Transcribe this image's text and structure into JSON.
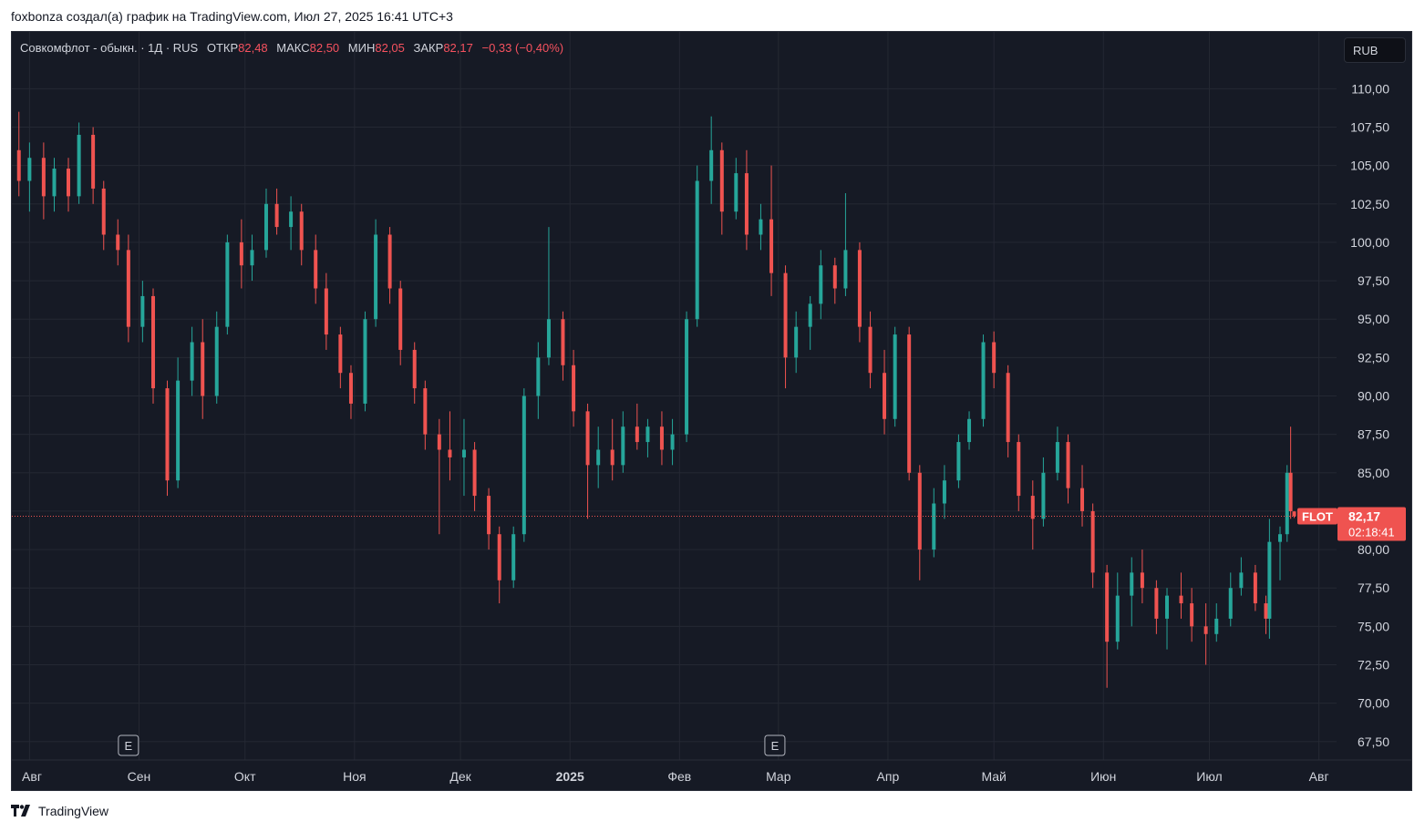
{
  "caption": "foxbonza создал(а) график на TradingView.com, Июл 27, 2025 16:41 UTC+3",
  "legend": {
    "symbol": "Совкомфлот - обыкн. · 1Д · RUS",
    "open_label": "ОТКР",
    "open": "82,48",
    "high_label": "МАКС",
    "high": "82,50",
    "low_label": "МИН",
    "low": "82,05",
    "close_label": "ЗАКР",
    "close": "82,17",
    "change": "−0,33 (−0,40%)"
  },
  "currency_button": "RUB",
  "price_tag": {
    "ticker": "FLOT",
    "price": "82,17",
    "timer": "02:18:41"
  },
  "earnings_marker": "E",
  "brand": "TradingView",
  "colors": {
    "background": "#161a25",
    "up": "#26a69a",
    "down": "#ef5350",
    "grid": "#242833",
    "text": "#d1d4dc"
  },
  "chart_data": {
    "type": "candlestick",
    "symbol": "FLOT",
    "currency": "RUB",
    "interval": "1Д",
    "y_axis": {
      "ticks": [
        "67,50",
        "70,00",
        "72,50",
        "75,00",
        "77,50",
        "80,00",
        "82,50",
        "85,00",
        "87,50",
        "90,00",
        "92,50",
        "95,00",
        "97,50",
        "100,00",
        "102,50",
        "105,00",
        "107,50",
        "110,00"
      ],
      "tick_values": [
        67.5,
        70,
        72.5,
        75,
        77.5,
        80,
        82.5,
        85,
        87.5,
        90,
        92.5,
        95,
        97.5,
        100,
        102.5,
        105,
        107.5,
        110
      ],
      "ylim": [
        66.3,
        113.7
      ]
    },
    "x_axis": {
      "labels": [
        {
          "text": "Авг",
          "date": "2024-08-01"
        },
        {
          "text": "Сен",
          "date": "2024-09-01"
        },
        {
          "text": "Окт",
          "date": "2024-10-01"
        },
        {
          "text": "Ноя",
          "date": "2024-11-01"
        },
        {
          "text": "Дек",
          "date": "2024-12-01"
        },
        {
          "text": "2025",
          "date": "2025-01-01",
          "bold": true
        },
        {
          "text": "Фев",
          "date": "2025-02-01"
        },
        {
          "text": "Мар",
          "date": "2025-03-01"
        },
        {
          "text": "Апр",
          "date": "2025-04-01"
        },
        {
          "text": "Май",
          "date": "2025-05-01"
        },
        {
          "text": "Июн",
          "date": "2025-06-01"
        },
        {
          "text": "Июл",
          "date": "2025-07-01"
        },
        {
          "text": "Авг",
          "date": "2025-08-01"
        }
      ],
      "range": [
        "2024-07-27",
        "2025-08-06"
      ]
    },
    "last_price": 82.17,
    "earnings_events": [
      "2024-08-29",
      "2025-02-28"
    ],
    "candles": [
      [
        "2024-07-29",
        106.0,
        108.5,
        103.0,
        104.0
      ],
      [
        "2024-08-01",
        104.0,
        106.5,
        102.0,
        105.5
      ],
      [
        "2024-08-05",
        105.5,
        106.5,
        101.5,
        103.0
      ],
      [
        "2024-08-08",
        103.0,
        105.5,
        102.0,
        104.8
      ],
      [
        "2024-08-12",
        104.8,
        105.5,
        102.0,
        103.0
      ],
      [
        "2024-08-15",
        103.0,
        107.8,
        102.5,
        107.0
      ],
      [
        "2024-08-19",
        107.0,
        107.5,
        102.5,
        103.5
      ],
      [
        "2024-08-22",
        103.5,
        104.0,
        99.5,
        100.5
      ],
      [
        "2024-08-26",
        100.5,
        101.5,
        98.5,
        99.5
      ],
      [
        "2024-08-29",
        99.5,
        100.5,
        93.5,
        94.5
      ],
      [
        "2024-09-02",
        94.5,
        97.5,
        93.5,
        96.5
      ],
      [
        "2024-09-05",
        96.5,
        97.0,
        89.5,
        90.5
      ],
      [
        "2024-09-09",
        90.5,
        91.0,
        83.5,
        84.5
      ],
      [
        "2024-09-12",
        84.5,
        92.5,
        84.0,
        91.0
      ],
      [
        "2024-09-16",
        91.0,
        94.5,
        90.0,
        93.5
      ],
      [
        "2024-09-19",
        93.5,
        95.0,
        88.5,
        90.0
      ],
      [
        "2024-09-23",
        90.0,
        95.5,
        89.5,
        94.5
      ],
      [
        "2024-09-26",
        94.5,
        100.5,
        94.0,
        100.0
      ],
      [
        "2024-09-30",
        100.0,
        101.5,
        97.0,
        98.5
      ],
      [
        "2024-10-03",
        98.5,
        100.5,
        97.5,
        99.5
      ],
      [
        "2024-10-07",
        99.5,
        103.5,
        99.0,
        102.5
      ],
      [
        "2024-10-10",
        102.5,
        103.5,
        100.5,
        101.0
      ],
      [
        "2024-10-14",
        101.0,
        103.0,
        99.5,
        102.0
      ],
      [
        "2024-10-17",
        102.0,
        102.5,
        98.5,
        99.5
      ],
      [
        "2024-10-21",
        99.5,
        100.5,
        96.0,
        97.0
      ],
      [
        "2024-10-24",
        97.0,
        98.0,
        93.0,
        94.0
      ],
      [
        "2024-10-28",
        94.0,
        94.5,
        90.5,
        91.5
      ],
      [
        "2024-10-31",
        91.5,
        92.0,
        88.5,
        89.5
      ],
      [
        "2024-11-04",
        89.5,
        95.5,
        89.0,
        95.0
      ],
      [
        "2024-11-07",
        95.0,
        101.5,
        94.5,
        100.5
      ],
      [
        "2024-11-11",
        100.5,
        101.0,
        96.0,
        97.0
      ],
      [
        "2024-11-14",
        97.0,
        97.5,
        92.0,
        93.0
      ],
      [
        "2024-11-18",
        93.0,
        93.5,
        89.5,
        90.5
      ],
      [
        "2024-11-21",
        90.5,
        91.0,
        86.5,
        87.5
      ],
      [
        "2024-11-25",
        87.5,
        88.5,
        81.0,
        86.5
      ],
      [
        "2024-11-28",
        86.5,
        89.0,
        84.5,
        86.0
      ],
      [
        "2024-12-02",
        86.0,
        88.5,
        83.5,
        86.5
      ],
      [
        "2024-12-05",
        86.5,
        87.0,
        82.5,
        83.5
      ],
      [
        "2024-12-09",
        83.5,
        84.0,
        80.0,
        81.0
      ],
      [
        "2024-12-12",
        81.0,
        81.5,
        76.5,
        78.0
      ],
      [
        "2024-12-16",
        78.0,
        81.5,
        77.5,
        81.0
      ],
      [
        "2024-12-19",
        81.0,
        90.5,
        80.5,
        90.0
      ],
      [
        "2024-12-23",
        90.0,
        93.5,
        88.5,
        92.5
      ],
      [
        "2024-12-26",
        92.5,
        101.0,
        92.0,
        95.0
      ],
      [
        "2024-12-30",
        95.0,
        95.5,
        91.0,
        92.0
      ],
      [
        "2025-01-02",
        92.0,
        93.0,
        88.0,
        89.0
      ],
      [
        "2025-01-06",
        89.0,
        89.5,
        82.0,
        85.5
      ],
      [
        "2025-01-09",
        85.5,
        88.0,
        84.0,
        86.5
      ],
      [
        "2025-01-13",
        86.5,
        88.5,
        84.5,
        85.5
      ],
      [
        "2025-01-16",
        85.5,
        89.0,
        85.0,
        88.0
      ],
      [
        "2025-01-20",
        88.0,
        89.5,
        86.5,
        87.0
      ],
      [
        "2025-01-23",
        87.0,
        88.5,
        86.0,
        88.0
      ],
      [
        "2025-01-27",
        88.0,
        89.0,
        85.5,
        86.5
      ],
      [
        "2025-01-30",
        86.5,
        88.5,
        85.5,
        87.5
      ],
      [
        "2025-02-03",
        87.5,
        95.5,
        87.0,
        95.0
      ],
      [
        "2025-02-06",
        95.0,
        105.0,
        94.5,
        104.0
      ],
      [
        "2025-02-10",
        104.0,
        108.2,
        102.5,
        106.0
      ],
      [
        "2025-02-13",
        106.0,
        106.5,
        100.5,
        102.0
      ],
      [
        "2025-02-17",
        102.0,
        105.5,
        101.5,
        104.5
      ],
      [
        "2025-02-20",
        104.5,
        106.0,
        99.5,
        100.5
      ],
      [
        "2025-02-24",
        100.5,
        102.5,
        99.5,
        101.5
      ],
      [
        "2025-02-27",
        101.5,
        105.0,
        96.5,
        98.0
      ],
      [
        "2025-03-03",
        98.0,
        98.5,
        90.5,
        92.5
      ],
      [
        "2025-03-06",
        92.5,
        95.5,
        91.5,
        94.5
      ],
      [
        "2025-03-10",
        94.5,
        96.5,
        93.0,
        96.0
      ],
      [
        "2025-03-13",
        96.0,
        99.5,
        95.0,
        98.5
      ],
      [
        "2025-03-17",
        98.5,
        99.0,
        96.0,
        97.0
      ],
      [
        "2025-03-20",
        97.0,
        103.2,
        96.5,
        99.5
      ],
      [
        "2025-03-24",
        99.5,
        100.0,
        93.5,
        94.5
      ],
      [
        "2025-03-27",
        94.5,
        95.5,
        90.5,
        91.5
      ],
      [
        "2025-03-31",
        91.5,
        93.0,
        87.5,
        88.5
      ],
      [
        "2025-04-03",
        88.5,
        94.5,
        88.0,
        94.0
      ],
      [
        "2025-04-07",
        94.0,
        94.5,
        84.5,
        85.0
      ],
      [
        "2025-04-10",
        85.0,
        85.5,
        78.0,
        80.0
      ],
      [
        "2025-04-14",
        80.0,
        84.0,
        79.5,
        83.0
      ],
      [
        "2025-04-17",
        83.0,
        85.5,
        82.0,
        84.5
      ],
      [
        "2025-04-21",
        84.5,
        87.5,
        84.0,
        87.0
      ],
      [
        "2025-04-24",
        87.0,
        89.0,
        86.5,
        88.5
      ],
      [
        "2025-04-28",
        88.5,
        94.0,
        88.0,
        93.5
      ],
      [
        "2025-05-01",
        93.5,
        94.2,
        90.5,
        91.5
      ],
      [
        "2025-05-05",
        91.5,
        92.0,
        86.0,
        87.0
      ],
      [
        "2025-05-08",
        87.0,
        87.5,
        82.5,
        83.5
      ],
      [
        "2025-05-12",
        83.5,
        84.5,
        80.0,
        82.0
      ],
      [
        "2025-05-15",
        82.0,
        86.0,
        81.5,
        85.0
      ],
      [
        "2025-05-19",
        85.0,
        88.0,
        84.5,
        87.0
      ],
      [
        "2025-05-22",
        87.0,
        87.5,
        83.0,
        84.0
      ],
      [
        "2025-05-26",
        84.0,
        85.5,
        81.5,
        82.5
      ],
      [
        "2025-05-29",
        82.5,
        83.0,
        77.5,
        78.5
      ],
      [
        "2025-06-02",
        78.5,
        79.0,
        71.0,
        74.0
      ],
      [
        "2025-06-05",
        74.0,
        78.5,
        73.5,
        77.0
      ],
      [
        "2025-06-09",
        77.0,
        79.5,
        75.0,
        78.5
      ],
      [
        "2025-06-12",
        78.5,
        80.0,
        76.5,
        77.5
      ],
      [
        "2025-06-16",
        77.5,
        78.0,
        74.5,
        75.5
      ],
      [
        "2025-06-19",
        75.5,
        77.5,
        73.5,
        77.0
      ],
      [
        "2025-06-23",
        77.0,
        78.5,
        75.5,
        76.5
      ],
      [
        "2025-06-26",
        76.5,
        77.5,
        74.0,
        75.0
      ],
      [
        "2025-06-30",
        75.0,
        76.5,
        72.5,
        74.5
      ],
      [
        "2025-07-03",
        74.5,
        76.5,
        74.0,
        75.5
      ],
      [
        "2025-07-07",
        75.5,
        78.5,
        75.0,
        77.5
      ],
      [
        "2025-07-10",
        77.5,
        79.5,
        77.0,
        78.5
      ],
      [
        "2025-07-14",
        78.5,
        79.0,
        76.0,
        76.5
      ],
      [
        "2025-07-17",
        76.5,
        77.0,
        74.5,
        75.5
      ],
      [
        "2025-07-18",
        75.5,
        82.0,
        74.2,
        80.5
      ],
      [
        "2025-07-21",
        80.5,
        81.5,
        78.0,
        81.0
      ],
      [
        "2025-07-23",
        81.0,
        85.5,
        80.5,
        85.0
      ],
      [
        "2025-07-24",
        85.0,
        88.0,
        82.0,
        82.5
      ],
      [
        "2025-07-25",
        82.48,
        82.5,
        82.05,
        82.17
      ]
    ]
  }
}
